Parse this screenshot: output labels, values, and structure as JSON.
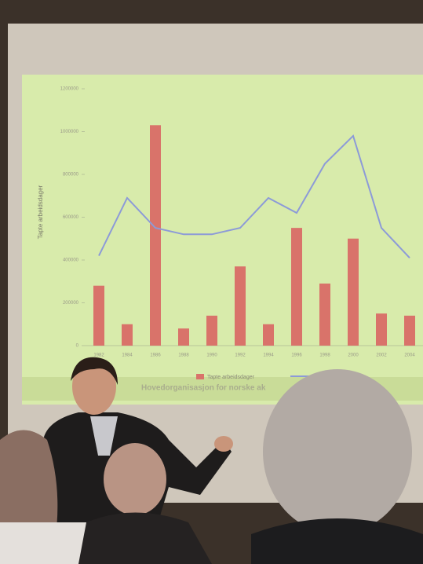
{
  "chart_data": {
    "type": "bar",
    "y_label": "Tapte arbeidsdager",
    "footer": "Hovedorganisasjon for norske ak",
    "categories": [
      "1982",
      "1984",
      "1986",
      "1988",
      "1990",
      "1992",
      "1994",
      "1996",
      "1998",
      "2000",
      "2002",
      "2004"
    ],
    "series": [
      {
        "name": "Tapte arbeidsdager",
        "type": "bar",
        "color": "#d9736a",
        "values": [
          280000,
          100000,
          1030000,
          80000,
          140000,
          370000,
          100000,
          550000,
          290000,
          500000,
          150000,
          140000
        ]
      },
      {
        "type": "line",
        "color": "#8c9ad8",
        "values": [
          420000,
          690000,
          550000,
          520000,
          520000,
          550000,
          690000,
          620000,
          850000,
          980000,
          550000,
          410000
        ]
      }
    ],
    "ylim": [
      0,
      1200000
    ],
    "yticks": [
      0,
      200000,
      400000,
      600000,
      800000,
      1000000,
      1200000
    ]
  }
}
